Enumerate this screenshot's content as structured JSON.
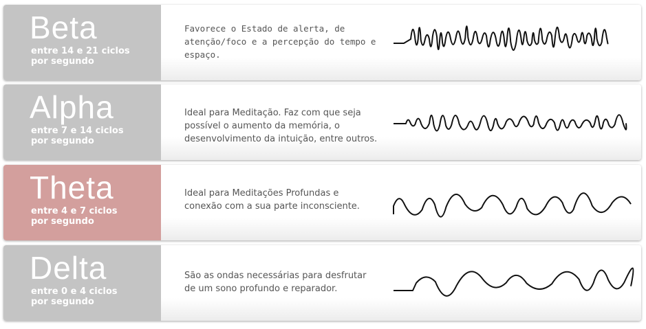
{
  "waves": [
    {
      "name": "Beta",
      "range": "entre 14 e 21 ciclos",
      "range2": "por segundo",
      "description": "Favorece o Estado de alerta, de atenção/foco e a percepção do tempo e espaço.",
      "highlight": false
    },
    {
      "name": "Alpha",
      "range": "entre 7 e 14 ciclos",
      "range2": "por segundo",
      "description": "Ideal para Meditação. Faz com que seja possível o aumento da memória, o desenvolvimento da intuição, entre outros.",
      "highlight": false
    },
    {
      "name": "Theta",
      "range": "entre 4 e 7 ciclos",
      "range2": "por segundo",
      "description": "Ideal para Meditações Profundas e conexão com a sua parte inconsciente.",
      "highlight": true
    },
    {
      "name": "Delta",
      "range": "entre 0 e 4 ciclos",
      "range2": "por segundo",
      "description": "São as ondas necessárias para desfrutar de um sono profundo e reparador.",
      "highlight": false
    }
  ],
  "colors": {
    "label_gray": "#c4c4c4",
    "label_highlight": "#d39f9d",
    "wave_stroke": "#111111"
  }
}
